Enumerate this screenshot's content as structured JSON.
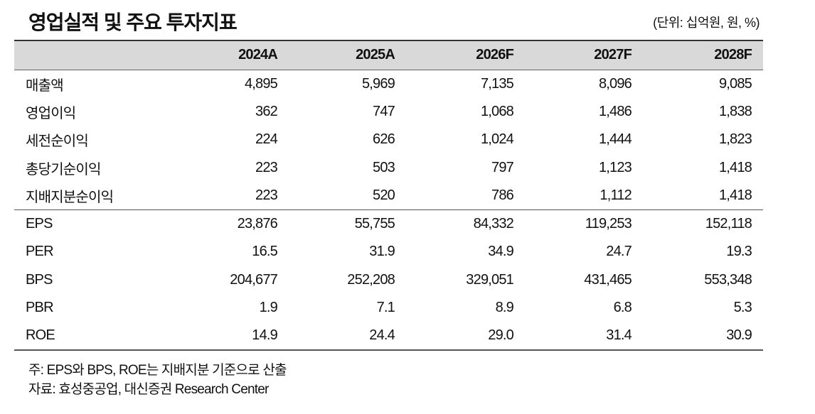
{
  "header": {
    "title": "영업실적 및 주요 투자지표",
    "unit": "(단위: 십억원, 원, %)"
  },
  "table": {
    "columns": [
      "",
      "2024A",
      "2025A",
      "2026F",
      "2027F",
      "2028F"
    ],
    "rows": [
      [
        "매출액",
        "4,895",
        "5,969",
        "7,135",
        "8,096",
        "9,085"
      ],
      [
        "영업이익",
        "362",
        "747",
        "1,068",
        "1,486",
        "1,838"
      ],
      [
        "세전순이익",
        "224",
        "626",
        "1,024",
        "1,444",
        "1,823"
      ],
      [
        "총당기순이익",
        "223",
        "503",
        "797",
        "1,123",
        "1,418"
      ],
      [
        "지배지분순이익",
        "223",
        "520",
        "786",
        "1,112",
        "1,418"
      ],
      [
        "EPS",
        "23,876",
        "55,755",
        "84,332",
        "119,253",
        "152,118"
      ],
      [
        "PER",
        "16.5",
        "31.9",
        "34.9",
        "24.7",
        "19.3"
      ],
      [
        "BPS",
        "204,677",
        "252,208",
        "329,051",
        "431,465",
        "553,348"
      ],
      [
        "PBR",
        "1.9",
        "7.1",
        "8.9",
        "6.8",
        "5.3"
      ],
      [
        "ROE",
        "14.9",
        "24.4",
        "29.0",
        "31.4",
        "30.9"
      ]
    ]
  },
  "notes": [
    "주: EPS와 BPS, ROE는 지배지분 기준으로 산출",
    "자료: 효성중공업, 대신증권 Research Center"
  ]
}
